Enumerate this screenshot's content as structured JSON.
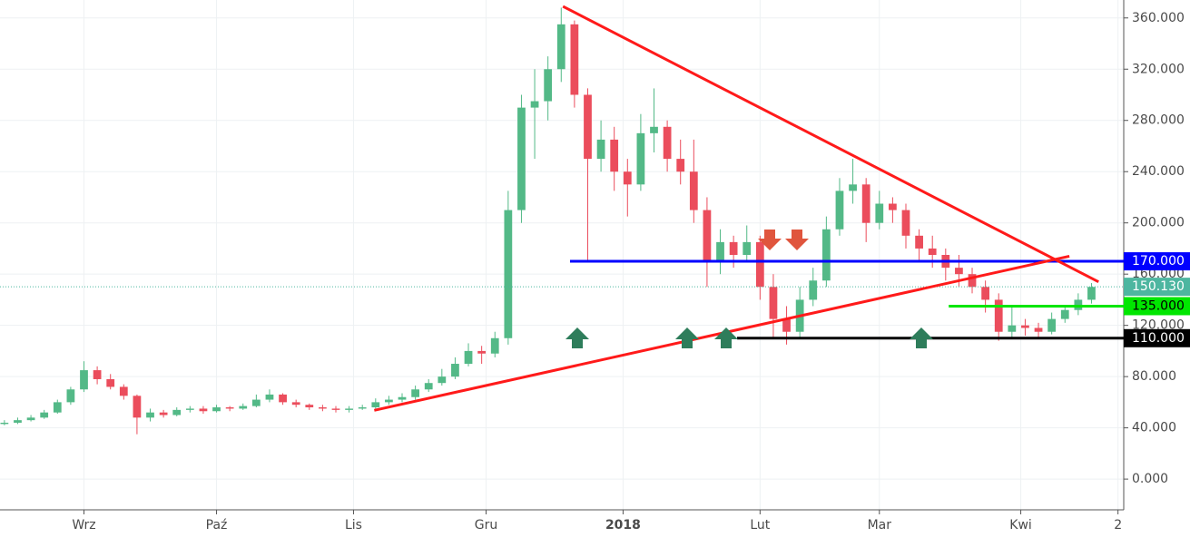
{
  "chart_data": {
    "type": "candlestick",
    "x": [
      -18,
      -15,
      -12,
      -9,
      -6,
      -3,
      0,
      3,
      6,
      9,
      12,
      15,
      18,
      21,
      24,
      27,
      30,
      33,
      36,
      39,
      42,
      45,
      48,
      51,
      54,
      57,
      60,
      63,
      66,
      69,
      72,
      75,
      78,
      81,
      84,
      87,
      90,
      93,
      96,
      99,
      102,
      105,
      108,
      111,
      114,
      117,
      120,
      123,
      126,
      129,
      132,
      135,
      138,
      141,
      144,
      147,
      150,
      153,
      156,
      159,
      162,
      165,
      168,
      171,
      174,
      177,
      180,
      183,
      186,
      189,
      192,
      195,
      198,
      201,
      204,
      207,
      210,
      213,
      216,
      219,
      222,
      225,
      228
    ],
    "open": [
      43,
      44,
      46,
      48,
      52,
      60,
      70,
      85,
      78,
      72,
      65,
      48,
      52,
      50,
      54,
      55,
      53,
      56,
      55,
      57,
      62,
      66,
      60,
      58,
      56,
      55,
      54,
      55,
      56,
      60,
      62,
      64,
      70,
      75,
      80,
      90,
      100,
      98,
      110,
      210,
      290,
      295,
      320,
      355,
      300,
      250,
      265,
      240,
      230,
      270,
      275,
      250,
      240,
      210,
      170,
      185,
      175,
      185,
      150,
      125,
      115,
      140,
      155,
      195,
      225,
      230,
      200,
      215,
      210,
      190,
      180,
      175,
      165,
      160,
      150,
      140,
      115,
      120,
      118,
      115,
      125,
      132,
      140
    ],
    "high": [
      46,
      48,
      50,
      54,
      62,
      72,
      92,
      88,
      82,
      74,
      66,
      55,
      54,
      56,
      57,
      57,
      58,
      57,
      59,
      66,
      70,
      67,
      62,
      59,
      58,
      57,
      57,
      58,
      63,
      65,
      67,
      73,
      78,
      86,
      95,
      106,
      104,
      115,
      225,
      300,
      320,
      330,
      368,
      358,
      305,
      280,
      275,
      250,
      285,
      305,
      280,
      265,
      265,
      220,
      195,
      190,
      198,
      190,
      160,
      135,
      150,
      165,
      205,
      235,
      250,
      235,
      225,
      220,
      215,
      195,
      190,
      180,
      175,
      165,
      155,
      145,
      135,
      125,
      122,
      130,
      136,
      145,
      153
    ],
    "low": [
      42,
      43,
      45,
      47,
      51,
      58,
      68,
      74,
      70,
      62,
      35,
      45,
      48,
      49,
      52,
      51,
      52,
      53,
      54,
      56,
      60,
      58,
      56,
      54,
      53,
      52,
      52,
      54,
      55,
      58,
      60,
      62,
      68,
      73,
      78,
      88,
      90,
      95,
      105,
      200,
      250,
      280,
      310,
      290,
      170,
      240,
      225,
      205,
      225,
      255,
      240,
      230,
      200,
      150,
      160,
      165,
      170,
      140,
      110,
      105,
      110,
      135,
      150,
      190,
      215,
      185,
      195,
      200,
      180,
      170,
      165,
      155,
      150,
      145,
      130,
      108,
      110,
      112,
      110,
      113,
      122,
      128,
      137
    ],
    "close": [
      44,
      46,
      48,
      52,
      60,
      70,
      85,
      78,
      72,
      65,
      48,
      52,
      50,
      54,
      55,
      53,
      56,
      55,
      57,
      62,
      66,
      60,
      58,
      56,
      55,
      54,
      55,
      56,
      60,
      62,
      64,
      70,
      75,
      80,
      90,
      100,
      98,
      110,
      210,
      290,
      295,
      320,
      355,
      300,
      250,
      265,
      240,
      230,
      270,
      275,
      250,
      240,
      210,
      170,
      185,
      175,
      185,
      150,
      125,
      115,
      140,
      155,
      195,
      225,
      230,
      200,
      215,
      210,
      190,
      180,
      175,
      165,
      160,
      150,
      140,
      115,
      120,
      118,
      115,
      125,
      132,
      140,
      150
    ],
    "up_color": "#53b987",
    "down_color": "#eb4d5c",
    "xlim": [
      -19,
      235.3
    ],
    "ylim": [
      -24,
      374
    ],
    "xticks": [
      {
        "value": 0,
        "label": "Wrz"
      },
      {
        "value": 30,
        "label": "Paź"
      },
      {
        "value": 61,
        "label": "Lis"
      },
      {
        "value": 91,
        "label": "Gru"
      },
      {
        "value": 122,
        "label": "2018"
      },
      {
        "value": 153,
        "label": "Lut"
      },
      {
        "value": 180,
        "label": "Mar"
      },
      {
        "value": 212,
        "label": "Kwi"
      },
      {
        "value": 234,
        "label": "2"
      }
    ],
    "yticks": [
      {
        "value": 0,
        "label": "0.000"
      },
      {
        "value": 40,
        "label": "40.000"
      },
      {
        "value": 80,
        "label": "80.000"
      },
      {
        "value": 120,
        "label": "120.000"
      },
      {
        "value": 160,
        "label": "160.000"
      },
      {
        "value": 200,
        "label": "200.000"
      },
      {
        "value": 240,
        "label": "240.000"
      },
      {
        "value": 280,
        "label": "280.000"
      },
      {
        "value": 320,
        "label": "320.000"
      },
      {
        "value": 360,
        "label": "360.000"
      }
    ],
    "grid": true,
    "levels": [
      {
        "value": 150.13,
        "label": "150.130",
        "color": "#4db6a0",
        "from": -19,
        "style": "dotted"
      },
      {
        "value": 170,
        "label": "170.000",
        "color": "#0000ff",
        "from": 110,
        "style": "solid"
      },
      {
        "value": 135,
        "label": "135.000",
        "color": "#00e600",
        "from": 195.7,
        "style": "solid"
      },
      {
        "value": 110,
        "label": "110.000",
        "color": "#000000",
        "from": 147.8,
        "style": "solid"
      }
    ],
    "trendlines": [
      {
        "x": [
          108.4,
          229.6
        ],
        "y": [
          369,
          154
        ],
        "color": "#ff1a1a"
      },
      {
        "x": [
          65.7,
          223
        ],
        "y": [
          53.7,
          174
        ],
        "color": "#ff1a1a"
      }
    ]
  }
}
